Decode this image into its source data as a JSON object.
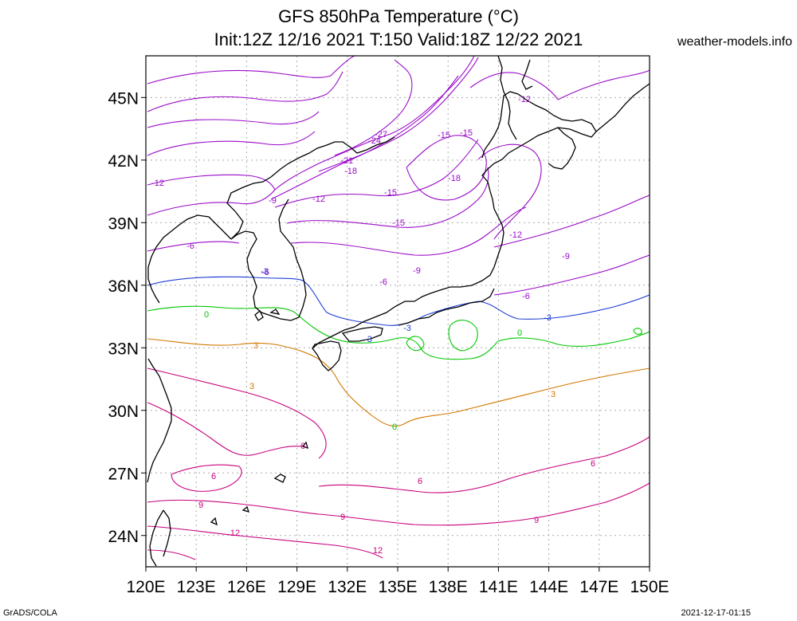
{
  "header": {
    "title_line1": "GFS 850hPa Temperature (°C)",
    "title_line2": "Init:12Z 12/16 2021 T:150 Valid:18Z 12/22 2021",
    "site": "weather-models.info"
  },
  "footer": {
    "left": "GrADS/COLA",
    "right": "2021-12-17-01:15"
  },
  "map": {
    "lon_range": [
      120,
      150
    ],
    "lat_range": [
      22.5,
      47
    ],
    "lon_labels": [
      "120E",
      "123E",
      "126E",
      "129E",
      "132E",
      "135E",
      "138E",
      "141E",
      "144E",
      "147E",
      "150E"
    ],
    "lat_labels": [
      "24N",
      "27N",
      "30N",
      "33N",
      "36N",
      "39N",
      "42N",
      "45N"
    ],
    "colors": {
      "purple": "#9a0ac8",
      "magenta": "#c8007d",
      "blue": "#1f3fd4",
      "green": "#00c800",
      "orange": "#d27800",
      "coast": "#000000",
      "grid": "#aaaaaa"
    },
    "contour_labels": [
      "-27",
      "-24",
      "-21",
      "-18",
      "-15",
      "-15",
      "-15",
      "-18",
      "-15",
      "-12",
      "-12",
      "-12",
      "-12",
      "-9",
      "-9",
      "-9",
      "-6",
      "-6",
      "-6",
      "-6",
      "-3",
      "-3",
      "-3",
      "-3",
      "0",
      "0",
      "0",
      "3",
      "3",
      "3",
      "6",
      "6",
      "6",
      "6",
      "9",
      "9",
      "9",
      "12",
      "12"
    ]
  }
}
